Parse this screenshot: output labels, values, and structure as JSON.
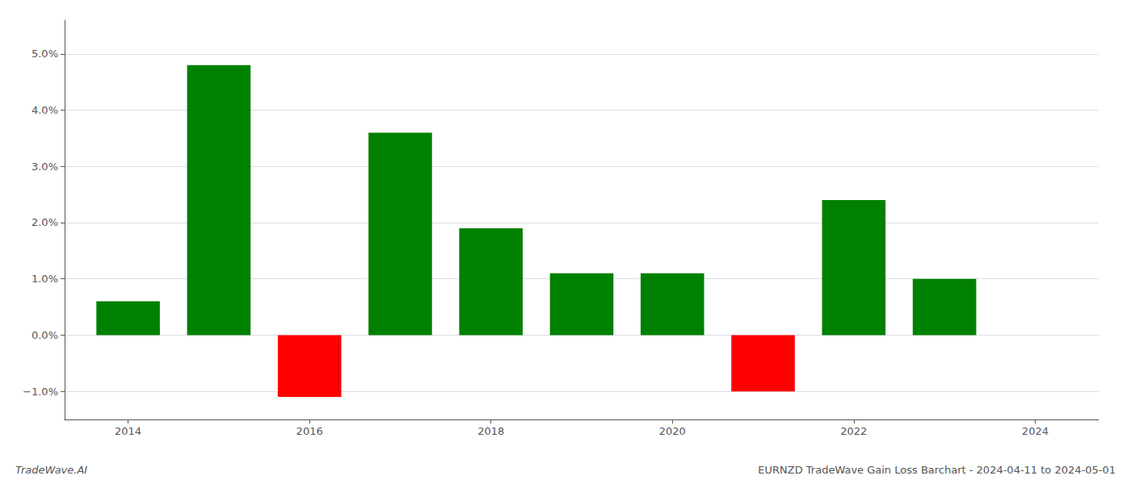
{
  "chart_data": {
    "type": "bar",
    "title": "EURNZD TradeWave Gain Loss Barchart - 2024-04-11 to 2024-05-01",
    "annotations": [
      "TradeWave.AI"
    ],
    "x": [
      2014,
      2015,
      2016,
      2017,
      2018,
      2019,
      2020,
      2021,
      2022,
      2023
    ],
    "values": [
      0.006,
      0.048,
      -0.011,
      0.036,
      0.019,
      0.011,
      0.011,
      -0.01,
      0.024,
      0.01
    ],
    "colors": [
      "#008000",
      "#008000",
      "#ff0000",
      "#008000",
      "#008000",
      "#008000",
      "#008000",
      "#ff0000",
      "#008000",
      "#008000"
    ],
    "xlim": [
      2013.3,
      2024.7
    ],
    "xticks": [
      2014,
      2016,
      2018,
      2020,
      2022,
      2024
    ],
    "ylim": [
      -0.015,
      0.056
    ],
    "yticks": [
      {
        "value": -0.01,
        "label": "−1.0%"
      },
      {
        "value": 0.0,
        "label": "0.0%"
      },
      {
        "value": 0.01,
        "label": "1.0%"
      },
      {
        "value": 0.02,
        "label": "2.0%"
      },
      {
        "value": 0.03,
        "label": "3.0%"
      },
      {
        "value": 0.04,
        "label": "4.0%"
      },
      {
        "value": 0.05,
        "label": "5.0%"
      }
    ],
    "grid": true
  }
}
